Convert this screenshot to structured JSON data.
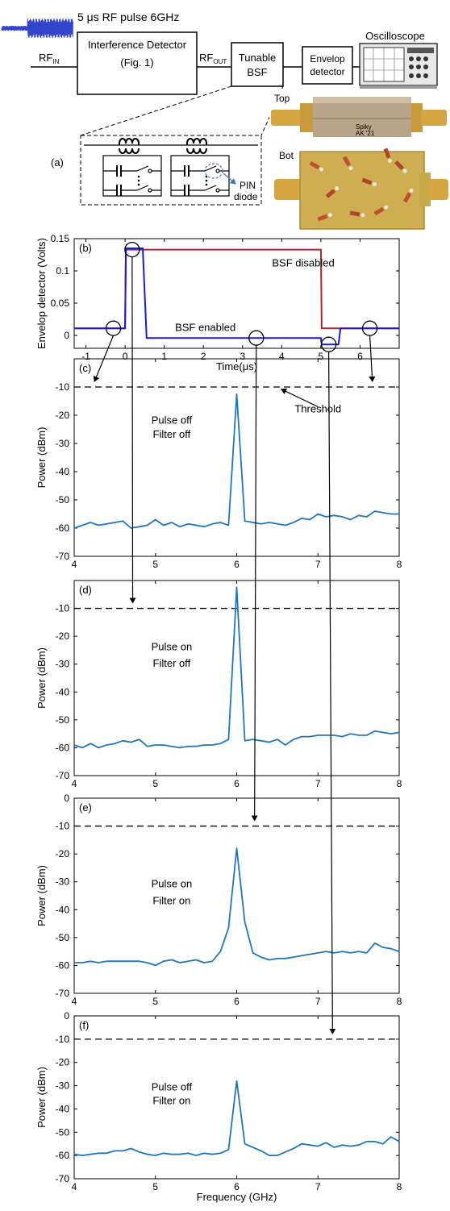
{
  "block_diagram": {
    "pulse_label": "5 μs RF pulse 6GHz",
    "rf_in": {
      "main": "RF",
      "sub": "IN"
    },
    "rf_out": {
      "main": "RF",
      "sub": "OUT"
    },
    "detector_line1": "Interference Detector",
    "detector_line2": "(Fig. 1)",
    "bsf_line1": "Tunable",
    "bsf_line2": "BSF",
    "envelop_line1": "Envelop",
    "envelop_line2": "detector",
    "oscilloscope": "Oscilloscope",
    "panel_a": "(a)",
    "pin_line1": "PIN",
    "pin_line2": "diode",
    "photo_top": "Top",
    "photo_bot": "Bot",
    "photo_brand_1": "Spiky",
    "photo_brand_2": "AK '21",
    "colors": {
      "pulse": "#3344cc",
      "gold": "#c8a050",
      "pcb": "#cfae52"
    }
  },
  "chart_data": [
    {
      "id": "b",
      "type": "line",
      "panel_label": "(b)",
      "xlabel": "Time(μs)",
      "ylabel": "Envelop detector (Volts)",
      "xlim": [
        -1.3,
        7.0
      ],
      "ylim": [
        -0.02,
        0.15
      ],
      "xticks": [
        -1,
        0,
        1,
        2,
        3,
        4,
        5,
        6
      ],
      "yticks": [
        0,
        0.05,
        0.1,
        0.15
      ],
      "ytick_labels": [
        "0",
        "0.05",
        "0.1",
        "0.15"
      ],
      "series": [
        {
          "name": "BSF disabled",
          "color": "#b0243a",
          "x": [
            -1.3,
            0.0,
            0.02,
            5.0,
            5.02,
            7.0
          ],
          "y": [
            0.011,
            0.011,
            0.133,
            0.133,
            0.011,
            0.011
          ]
        },
        {
          "name": "BSF enabled",
          "color": "#1a1ad6",
          "x": [
            -1.3,
            0.0,
            0.02,
            0.45,
            0.55,
            5.0,
            5.02,
            5.45,
            5.5,
            7.0
          ],
          "y": [
            0.011,
            0.011,
            0.135,
            0.135,
            -0.004,
            -0.004,
            -0.014,
            -0.014,
            0.011,
            0.011
          ]
        }
      ],
      "annotations": [
        {
          "text": "BSF disabled",
          "x": 4.55,
          "y": 0.107,
          "color": "#b0243a"
        },
        {
          "text": "BSF enabled",
          "x": 2.05,
          "y": 0.007,
          "color": "#1a1ad6"
        }
      ],
      "markers": [
        {
          "x": -0.3,
          "y": 0.011
        },
        {
          "x": 0.18,
          "y": 0.133
        },
        {
          "x": 3.35,
          "y": -0.004
        },
        {
          "x": 5.2,
          "y": -0.014
        },
        {
          "x": 6.25,
          "y": 0.011
        }
      ]
    },
    {
      "id": "c",
      "type": "line",
      "panel_label": "(c)",
      "xlabel": "",
      "ylabel": "Power (dBm)",
      "xlim": [
        4,
        8
      ],
      "ylim": [
        -70,
        0
      ],
      "xticks": [
        4,
        5,
        6,
        7,
        8
      ],
      "yticks": [
        -70,
        -60,
        -50,
        -40,
        -30,
        -20,
        -10
      ],
      "threshold": -10,
      "color": "#1f77c0",
      "x": [
        4.0,
        4.1,
        4.2,
        4.3,
        4.4,
        4.5,
        4.6,
        4.7,
        4.8,
        4.9,
        5.0,
        5.1,
        5.2,
        5.3,
        5.4,
        5.5,
        5.6,
        5.7,
        5.8,
        5.9,
        6.0,
        6.1,
        6.2,
        6.3,
        6.4,
        6.5,
        6.6,
        6.7,
        6.8,
        6.9,
        7.0,
        7.1,
        7.2,
        7.3,
        7.4,
        7.5,
        7.6,
        7.7,
        7.8,
        7.9,
        8.0
      ],
      "y": [
        -60,
        -59,
        -58,
        -59,
        -58.5,
        -58,
        -57.5,
        -60,
        -59.5,
        -59,
        -57,
        -59,
        -58,
        -59.5,
        -58.5,
        -59,
        -59.5,
        -58.5,
        -58,
        -59,
        -12.5,
        -57.5,
        -58,
        -58.5,
        -58,
        -58.5,
        -59,
        -58,
        -56.5,
        -57,
        -55,
        -56,
        -55.5,
        -56,
        -57,
        -55.5,
        -56,
        -54,
        -54.5,
        -55,
        -55
      ],
      "annotations": [
        {
          "text": "Pulse off",
          "x": 5.2,
          "y": -23
        },
        {
          "text": "Filter off",
          "x": 5.2,
          "y": -28
        },
        {
          "text": "Threshold",
          "x": 7.0,
          "y": -19
        }
      ]
    },
    {
      "id": "d",
      "type": "line",
      "panel_label": "(d)",
      "xlabel": "",
      "ylabel": "Power (dBm)",
      "xlim": [
        4,
        8
      ],
      "ylim": [
        -70,
        0
      ],
      "xticks": [
        4,
        5,
        6,
        7,
        8
      ],
      "yticks": [
        -70,
        -60,
        -50,
        -40,
        -30,
        -20,
        -10
      ],
      "threshold": -10,
      "color": "#1f77c0",
      "x": [
        4.0,
        4.1,
        4.2,
        4.3,
        4.4,
        4.5,
        4.6,
        4.7,
        4.8,
        4.9,
        5.0,
        5.1,
        5.2,
        5.3,
        5.4,
        5.5,
        5.6,
        5.7,
        5.8,
        5.9,
        6.0,
        6.1,
        6.2,
        6.3,
        6.4,
        6.5,
        6.6,
        6.7,
        6.8,
        6.9,
        7.0,
        7.1,
        7.2,
        7.3,
        7.4,
        7.5,
        7.6,
        7.7,
        7.8,
        7.9,
        8.0
      ],
      "y": [
        -59,
        -60,
        -58.5,
        -60,
        -59,
        -58.5,
        -57.5,
        -58,
        -57,
        -59.5,
        -59,
        -59,
        -59.5,
        -60,
        -59.5,
        -59.5,
        -59,
        -59,
        -58.5,
        -57,
        -2.5,
        -57.5,
        -57,
        -57.5,
        -58,
        -57,
        -59,
        -57,
        -56,
        -56,
        -55.5,
        -55.5,
        -55.5,
        -56,
        -55,
        -55.5,
        -55.5,
        -54,
        -54.5,
        -55,
        -54.5
      ],
      "annotations": [
        {
          "text": "Pulse on",
          "x": 5.2,
          "y": -25
        },
        {
          "text": "Filter off",
          "x": 5.2,
          "y": -31
        }
      ]
    },
    {
      "id": "e",
      "type": "line",
      "panel_label": "(e)",
      "xlabel": "",
      "ylabel": "Power (dBm)",
      "xlim": [
        4,
        8
      ],
      "ylim": [
        -70,
        0
      ],
      "xticks": [
        4,
        5,
        6,
        7,
        8
      ],
      "yticks": [
        -70,
        -60,
        -50,
        -40,
        -30,
        -20,
        -10,
        0
      ],
      "threshold": -10,
      "color": "#1f77c0",
      "x": [
        4.0,
        4.1,
        4.2,
        4.3,
        4.4,
        4.5,
        4.6,
        4.7,
        4.8,
        4.9,
        5.0,
        5.1,
        5.2,
        5.3,
        5.4,
        5.5,
        5.6,
        5.7,
        5.8,
        5.9,
        6.0,
        6.1,
        6.2,
        6.3,
        6.4,
        6.5,
        6.6,
        6.7,
        6.8,
        6.9,
        7.0,
        7.1,
        7.2,
        7.3,
        7.4,
        7.5,
        7.6,
        7.7,
        7.8,
        7.9,
        8.0
      ],
      "y": [
        -59,
        -59,
        -58.5,
        -59,
        -58.5,
        -58.5,
        -58.5,
        -58.5,
        -58.5,
        -59,
        -60,
        -58.5,
        -58,
        -59,
        -58.5,
        -58,
        -59,
        -58.5,
        -55,
        -46.5,
        -18,
        -44.5,
        -55.5,
        -57,
        -58,
        -57.5,
        -57.5,
        -57,
        -56.5,
        -56,
        -55.5,
        -55,
        -55.5,
        -55,
        -55.5,
        -55,
        -55.5,
        -52,
        -53.5,
        -54,
        -55
      ],
      "annotations": [
        {
          "text": "Pulse on",
          "x": 5.2,
          "y": -32
        },
        {
          "text": "Filter on",
          "x": 5.2,
          "y": -38
        }
      ]
    },
    {
      "id": "f",
      "type": "line",
      "panel_label": "(f)",
      "xlabel": "Frequency (GHz)",
      "ylabel": "Power (dBm)",
      "xlim": [
        4,
        8
      ],
      "ylim": [
        -70,
        0
      ],
      "xticks": [
        4,
        5,
        6,
        7,
        8
      ],
      "yticks": [
        -70,
        -60,
        -50,
        -40,
        -30,
        -20,
        -10,
        0
      ],
      "threshold": -10,
      "color": "#1f77c0",
      "x": [
        4.0,
        4.1,
        4.2,
        4.3,
        4.4,
        4.5,
        4.6,
        4.7,
        4.8,
        4.9,
        5.0,
        5.1,
        5.2,
        5.3,
        5.4,
        5.5,
        5.6,
        5.7,
        5.8,
        5.9,
        6.0,
        6.1,
        6.2,
        6.3,
        6.4,
        6.5,
        6.6,
        6.7,
        6.8,
        6.9,
        7.0,
        7.1,
        7.2,
        7.3,
        7.4,
        7.5,
        7.6,
        7.7,
        7.8,
        7.9,
        8.0
      ],
      "y": [
        -59.5,
        -60,
        -59.5,
        -59,
        -59,
        -58,
        -58,
        -57,
        -58.5,
        -59.5,
        -60,
        -59,
        -59.5,
        -59.5,
        -59,
        -60,
        -59,
        -59.5,
        -59,
        -57.5,
        -28,
        -55,
        -56.5,
        -58,
        -60,
        -60,
        -58.5,
        -57,
        -55,
        -55.5,
        -56,
        -54.5,
        -56.5,
        -55.5,
        -56,
        -55.5,
        -54,
        -54,
        -55,
        -52,
        -54
      ],
      "annotations": [
        {
          "text": "Pulse off",
          "x": 5.2,
          "y": -32
        },
        {
          "text": "Filter on",
          "x": 5.2,
          "y": -38
        }
      ]
    }
  ],
  "cross_arrows": [
    {
      "from_time": -0.3,
      "to_panel": "c",
      "to_freq": 4.25
    },
    {
      "from_time": 0.18,
      "to_panel": "d",
      "to_freq": 4.72
    },
    {
      "from_time": 3.35,
      "to_panel": "e",
      "to_freq": 6.22
    },
    {
      "from_time": 5.2,
      "to_panel": "f",
      "to_freq": 7.18
    },
    {
      "from_time": 6.25,
      "to_panel": "c",
      "to_freq": 7.67
    }
  ]
}
